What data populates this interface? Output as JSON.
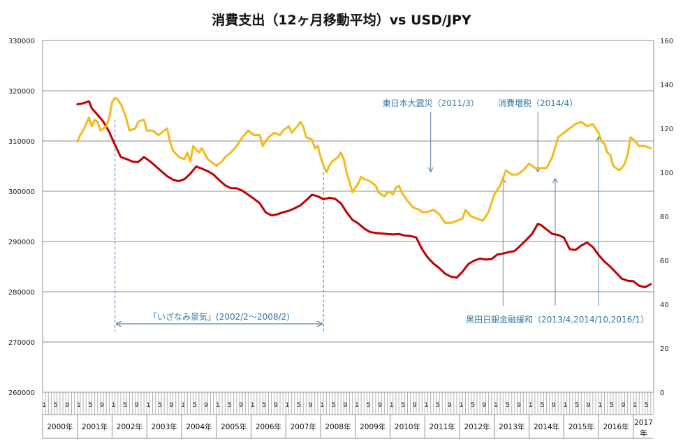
{
  "chart_data": {
    "type": "line",
    "title": "消費支出（12ヶ月移動平均）vs USD/JPY",
    "y_left": {
      "min": 260000,
      "max": 330000,
      "ticks": [
        260000,
        270000,
        280000,
        290000,
        300000,
        310000,
        320000,
        330000
      ]
    },
    "y_right": {
      "min": 0,
      "max": 160,
      "ticks": [
        0,
        20,
        40,
        60,
        80,
        100,
        120,
        140,
        160
      ]
    },
    "x_range": [
      "2000-01",
      "2017-08"
    ],
    "month_tick_labels": [
      "1",
      "5",
      "9"
    ],
    "years": [
      "2000年",
      "2001年",
      "2002年",
      "2003年",
      "2004年",
      "2005年",
      "2006年",
      "2007年",
      "2008年",
      "2009年",
      "2010年",
      "2011年",
      "2012年",
      "2013年",
      "2014年",
      "2015年",
      "2016年",
      "2017年"
    ],
    "grid": true,
    "series": [
      {
        "axis": "left",
        "color": "#c00000",
        "points": [
          [
            "2001-01",
            317300
          ],
          [
            "2001-03",
            317500
          ],
          [
            "2001-05",
            317900
          ],
          [
            "2001-06",
            316500
          ],
          [
            "2001-08",
            315200
          ],
          [
            "2001-10",
            313800
          ],
          [
            "2001-12",
            311800
          ],
          [
            "2002-02",
            309200
          ],
          [
            "2002-04",
            306800
          ],
          [
            "2002-06",
            306400
          ],
          [
            "2002-08",
            305900
          ],
          [
            "2002-10",
            305800
          ],
          [
            "2002-12",
            306800
          ],
          [
            "2003-02",
            306000
          ],
          [
            "2003-04",
            305000
          ],
          [
            "2003-06",
            304000
          ],
          [
            "2003-08",
            303000
          ],
          [
            "2003-10",
            302300
          ],
          [
            "2003-12",
            302000
          ],
          [
            "2004-02",
            302400
          ],
          [
            "2004-04",
            303500
          ],
          [
            "2004-06",
            304900
          ],
          [
            "2004-08",
            304500
          ],
          [
            "2004-10",
            304000
          ],
          [
            "2004-12",
            303300
          ],
          [
            "2005-02",
            302200
          ],
          [
            "2005-04",
            301200
          ],
          [
            "2005-06",
            300600
          ],
          [
            "2005-08",
            300600
          ],
          [
            "2005-10",
            300100
          ],
          [
            "2005-12",
            299300
          ],
          [
            "2006-02",
            298500
          ],
          [
            "2006-04",
            297600
          ],
          [
            "2006-06",
            295800
          ],
          [
            "2006-08",
            295200
          ],
          [
            "2006-10",
            295400
          ],
          [
            "2006-12",
            295800
          ],
          [
            "2007-02",
            296100
          ],
          [
            "2007-04",
            296600
          ],
          [
            "2007-06",
            297200
          ],
          [
            "2007-08",
            298200
          ],
          [
            "2007-10",
            299300
          ],
          [
            "2007-12",
            299000
          ],
          [
            "2008-02",
            298400
          ],
          [
            "2008-04",
            298700
          ],
          [
            "2008-06",
            298500
          ],
          [
            "2008-08",
            297600
          ],
          [
            "2008-10",
            295800
          ],
          [
            "2008-12",
            294300
          ],
          [
            "2009-02",
            293600
          ],
          [
            "2009-04",
            292600
          ],
          [
            "2009-06",
            291900
          ],
          [
            "2009-08",
            291700
          ],
          [
            "2009-10",
            291600
          ],
          [
            "2009-12",
            291500
          ],
          [
            "2010-02",
            291400
          ],
          [
            "2010-04",
            291500
          ],
          [
            "2010-06",
            291200
          ],
          [
            "2010-08",
            291100
          ],
          [
            "2010-10",
            290800
          ],
          [
            "2010-12",
            288500
          ],
          [
            "2011-02",
            286800
          ],
          [
            "2011-04",
            285600
          ],
          [
            "2011-06",
            284700
          ],
          [
            "2011-08",
            283600
          ],
          [
            "2011-10",
            283000
          ],
          [
            "2011-12",
            282800
          ],
          [
            "2012-02",
            284000
          ],
          [
            "2012-04",
            285500
          ],
          [
            "2012-06",
            286200
          ],
          [
            "2012-08",
            286600
          ],
          [
            "2012-10",
            286400
          ],
          [
            "2012-12",
            286500
          ],
          [
            "2013-02",
            287400
          ],
          [
            "2013-04",
            287600
          ],
          [
            "2013-06",
            287900
          ],
          [
            "2013-08",
            288100
          ],
          [
            "2013-10",
            289200
          ],
          [
            "2013-12",
            290300
          ],
          [
            "2014-02",
            291500
          ],
          [
            "2014-04",
            293500
          ],
          [
            "2014-05",
            293300
          ],
          [
            "2014-07",
            292400
          ],
          [
            "2014-09",
            291500
          ],
          [
            "2014-11",
            291300
          ],
          [
            "2015-01",
            290800
          ],
          [
            "2015-03",
            288500
          ],
          [
            "2015-05",
            288300
          ],
          [
            "2015-07",
            289200
          ],
          [
            "2015-09",
            289800
          ],
          [
            "2015-11",
            288900
          ],
          [
            "2016-01",
            287300
          ],
          [
            "2016-03",
            286000
          ],
          [
            "2016-05",
            285000
          ],
          [
            "2016-07",
            283800
          ],
          [
            "2016-09",
            282600
          ],
          [
            "2016-11",
            282200
          ],
          [
            "2017-01",
            282100
          ],
          [
            "2017-03",
            281200
          ],
          [
            "2017-05",
            280900
          ],
          [
            "2017-07",
            281500
          ]
        ]
      },
      {
        "axis": "right",
        "color": "#f6b91c",
        "points": [
          [
            "2001-01",
            114
          ],
          [
            "2001-02",
            117
          ],
          [
            "2001-03",
            119
          ],
          [
            "2001-05",
            125
          ],
          [
            "2001-06",
            121
          ],
          [
            "2001-07",
            124
          ],
          [
            "2001-08",
            123
          ],
          [
            "2001-09",
            119
          ],
          [
            "2001-11",
            121
          ],
          [
            "2001-12",
            125
          ],
          [
            "2002-01",
            132
          ],
          [
            "2002-02",
            134
          ],
          [
            "2002-03",
            133
          ],
          [
            "2002-04",
            131
          ],
          [
            "2002-05",
            128
          ],
          [
            "2002-06",
            124
          ],
          [
            "2002-07",
            119
          ],
          [
            "2002-09",
            120
          ],
          [
            "2002-10",
            123
          ],
          [
            "2002-12",
            124
          ],
          [
            "2003-01",
            119
          ],
          [
            "2003-03",
            119
          ],
          [
            "2003-05",
            117
          ],
          [
            "2003-07",
            119
          ],
          [
            "2003-08",
            120
          ],
          [
            "2003-09",
            114
          ],
          [
            "2003-10",
            110
          ],
          [
            "2003-12",
            107
          ],
          [
            "2004-02",
            106
          ],
          [
            "2004-03",
            109
          ],
          [
            "2004-04",
            105
          ],
          [
            "2004-05",
            112
          ],
          [
            "2004-07",
            109
          ],
          [
            "2004-08",
            111
          ],
          [
            "2004-10",
            106
          ],
          [
            "2004-12",
            104
          ],
          [
            "2005-01",
            103
          ],
          [
            "2005-03",
            105
          ],
          [
            "2005-04",
            107
          ],
          [
            "2005-06",
            109
          ],
          [
            "2005-08",
            112
          ],
          [
            "2005-10",
            116
          ],
          [
            "2005-12",
            119
          ],
          [
            "2006-02",
            117
          ],
          [
            "2006-04",
            117
          ],
          [
            "2006-05",
            112
          ],
          [
            "2006-07",
            116
          ],
          [
            "2006-09",
            118
          ],
          [
            "2006-11",
            117
          ],
          [
            "2006-12",
            119
          ],
          [
            "2007-02",
            121
          ],
          [
            "2007-03",
            118
          ],
          [
            "2007-05",
            121
          ],
          [
            "2007-06",
            123
          ],
          [
            "2007-07",
            121
          ],
          [
            "2007-08",
            116
          ],
          [
            "2007-10",
            115
          ],
          [
            "2007-11",
            111
          ],
          [
            "2007-12",
            112
          ],
          [
            "2008-01",
            107
          ],
          [
            "2008-02",
            103
          ],
          [
            "2008-03",
            100
          ],
          [
            "2008-04",
            103
          ],
          [
            "2008-05",
            105
          ],
          [
            "2008-07",
            107
          ],
          [
            "2008-08",
            109
          ],
          [
            "2008-09",
            106
          ],
          [
            "2008-10",
            100
          ],
          [
            "2008-12",
            91
          ],
          [
            "2009-02",
            95
          ],
          [
            "2009-03",
            98
          ],
          [
            "2009-04",
            97
          ],
          [
            "2009-06",
            96
          ],
          [
            "2009-08",
            94
          ],
          [
            "2009-09",
            91
          ],
          [
            "2009-11",
            89
          ],
          [
            "2009-12",
            91
          ],
          [
            "2010-01",
            91
          ],
          [
            "2010-02",
            90
          ],
          [
            "2010-03",
            93
          ],
          [
            "2010-04",
            94
          ],
          [
            "2010-05",
            91
          ],
          [
            "2010-07",
            87
          ],
          [
            "2010-09",
            84
          ],
          [
            "2010-11",
            83
          ],
          [
            "2010-12",
            82
          ],
          [
            "2011-02",
            82
          ],
          [
            "2011-04",
            83
          ],
          [
            "2011-06",
            81
          ],
          [
            "2011-08",
            77
          ],
          [
            "2011-10",
            77
          ],
          [
            "2011-12",
            78
          ],
          [
            "2012-02",
            79
          ],
          [
            "2012-03",
            83
          ],
          [
            "2012-05",
            80
          ],
          [
            "2012-07",
            79
          ],
          [
            "2012-09",
            78
          ],
          [
            "2012-11",
            82
          ],
          [
            "2013-01",
            90
          ],
          [
            "2013-03",
            94
          ],
          [
            "2013-05",
            101
          ],
          [
            "2013-07",
            99
          ],
          [
            "2013-09",
            99
          ],
          [
            "2013-11",
            101
          ],
          [
            "2014-01",
            104
          ],
          [
            "2014-03",
            102
          ],
          [
            "2014-05",
            102
          ],
          [
            "2014-07",
            102
          ],
          [
            "2014-09",
            107
          ],
          [
            "2014-11",
            116
          ],
          [
            "2015-01",
            118
          ],
          [
            "2015-03",
            120
          ],
          [
            "2015-05",
            122
          ],
          [
            "2015-07",
            123
          ],
          [
            "2015-09",
            121
          ],
          [
            "2015-11",
            122
          ],
          [
            "2016-01",
            118
          ],
          [
            "2016-02",
            114
          ],
          [
            "2016-03",
            113
          ],
          [
            "2016-04",
            109
          ],
          [
            "2016-05",
            108
          ],
          [
            "2016-06",
            103
          ],
          [
            "2016-08",
            101
          ],
          [
            "2016-09",
            102
          ],
          [
            "2016-10",
            104
          ],
          [
            "2016-11",
            108
          ],
          [
            "2016-12",
            116
          ],
          [
            "2017-01",
            115
          ],
          [
            "2017-03",
            112
          ],
          [
            "2017-05",
            112
          ],
          [
            "2017-07",
            111
          ]
        ]
      }
    ],
    "annotations": [
      {
        "kind": "range",
        "text": "「いざなみ景気」(2002/2〜2008/2)",
        "from": "2002-02",
        "to": "2008-02"
      },
      {
        "kind": "arrow",
        "text": "東日本大震災（2011/3）",
        "at": "2011-03"
      },
      {
        "kind": "arrow",
        "text": "消費増税（2014/4）",
        "at": "2014-04"
      },
      {
        "kind": "arrows",
        "text": "黒田日銀金融緩和（2013/4,2014/10,2016/1）",
        "at": [
          "2013-04",
          "2014-10",
          "2016-01"
        ]
      }
    ]
  }
}
